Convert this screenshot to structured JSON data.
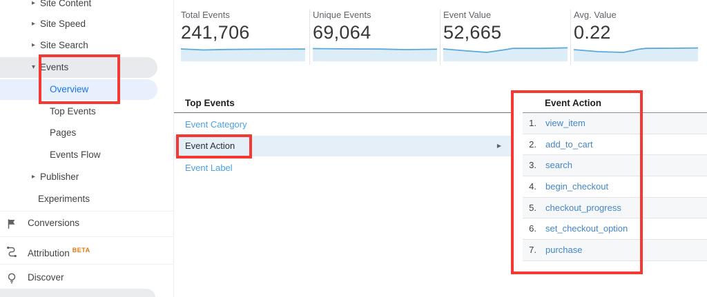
{
  "colors": {
    "annotation_red": "#f43834",
    "link_blue": "#4285c8",
    "panel_link_blue": "#4aa0e4",
    "active_blue": "#1a73e8",
    "selected_row_bg": "#e4eff7",
    "pill_gray": "#e9eaed",
    "pill_blue": "#e8f0fe",
    "spark_line": "#58a8d9",
    "spark_fill": "#dcedf8",
    "beta_orange": "#e8710a"
  },
  "icons": {
    "chevron_collapsed": "▸",
    "chevron_expanded": "▾",
    "flyout_arrow": "▶"
  },
  "sidebar": {
    "items": [
      {
        "label": "Site Content"
      },
      {
        "label": "Site Speed"
      },
      {
        "label": "Site Search"
      },
      {
        "label": "Events"
      },
      {
        "label": "Overview"
      },
      {
        "label": "Top Events"
      },
      {
        "label": "Pages"
      },
      {
        "label": "Events Flow"
      },
      {
        "label": "Publisher"
      },
      {
        "label": "Experiments"
      },
      {
        "label": "Conversions"
      },
      {
        "label": "Attribution",
        "badge": "BETA"
      },
      {
        "label": "Discover"
      }
    ]
  },
  "metrics": {
    "cards": [
      {
        "label": "Total Events",
        "value": "241,706",
        "spark": [
          [
            0,
            6
          ],
          [
            0.18,
            7.5
          ],
          [
            0.35,
            6.8
          ],
          [
            0.6,
            6.4
          ],
          [
            1,
            6.2
          ]
        ]
      },
      {
        "label": "Unique Events",
        "value": "69,064",
        "spark": [
          [
            0,
            5.5
          ],
          [
            0.3,
            6
          ],
          [
            0.55,
            6.2
          ],
          [
            0.75,
            7
          ],
          [
            1,
            6.4
          ]
        ]
      },
      {
        "label": "Event Value",
        "value": "52,665",
        "spark": [
          [
            0,
            6
          ],
          [
            0.2,
            9
          ],
          [
            0.35,
            11
          ],
          [
            0.5,
            7
          ],
          [
            0.56,
            5.2
          ],
          [
            0.8,
            5.2
          ],
          [
            1,
            4.4
          ]
        ]
      },
      {
        "label": "Avg. Value",
        "value": "0.22",
        "spark": [
          [
            0,
            7
          ],
          [
            0.2,
            10
          ],
          [
            0.4,
            11
          ],
          [
            0.52,
            6.5
          ],
          [
            0.58,
            5.2
          ],
          [
            0.8,
            5
          ],
          [
            1,
            4.6
          ]
        ]
      }
    ]
  },
  "top_events": {
    "title": "Top Events",
    "links": [
      {
        "label": "Event Category"
      },
      {
        "label": "Event Action"
      },
      {
        "label": "Event Label"
      }
    ]
  },
  "event_action_table": {
    "header": "Event Action",
    "rows": [
      {
        "num": "1.",
        "label": "view_item"
      },
      {
        "num": "2.",
        "label": "add_to_cart"
      },
      {
        "num": "3.",
        "label": "search"
      },
      {
        "num": "4.",
        "label": "begin_checkout"
      },
      {
        "num": "5.",
        "label": "checkout_progress"
      },
      {
        "num": "6.",
        "label": "set_checkout_option"
      },
      {
        "num": "7.",
        "label": "purchase"
      }
    ]
  }
}
